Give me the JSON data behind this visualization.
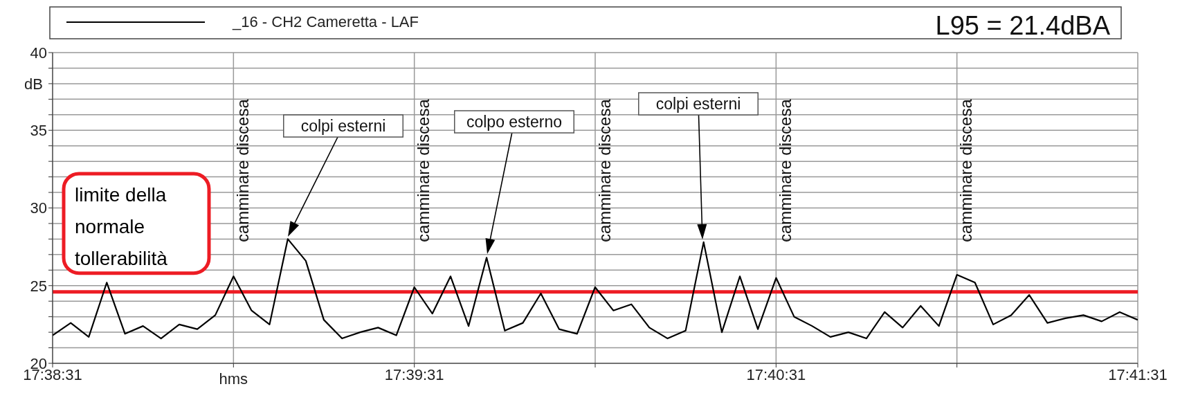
{
  "chart_data": {
    "type": "line",
    "xlabel": "hms",
    "ylabel": "dB",
    "legend": "top",
    "grid": true,
    "marker": "none",
    "line_style": "solid",
    "xlim": [
      17.641944,
      17.691944
    ],
    "xticks": [
      {
        "value": 17.641944,
        "label": "17:38:31"
      },
      {
        "value": 17.650278,
        "label": null
      },
      {
        "value": 17.658611,
        "label": "17:39:31"
      },
      {
        "value": 17.666944,
        "label": null
      },
      {
        "value": 17.675278,
        "label": "17:40:31"
      },
      {
        "value": 17.683611,
        "label": null
      },
      {
        "value": 17.691944,
        "label": "17:41:31"
      }
    ],
    "ylim": [
      20,
      40
    ],
    "yticks": [
      20,
      {
        "value": 21,
        "label": null
      },
      {
        "value": 22,
        "label": null
      },
      {
        "value": 23,
        "label": null
      },
      {
        "value": 24,
        "label": null
      },
      25,
      {
        "value": 26,
        "label": null
      },
      {
        "value": 27,
        "label": null
      },
      {
        "value": 28,
        "label": null
      },
      {
        "value": 29,
        "label": null
      },
      30,
      {
        "value": 31,
        "label": null
      },
      {
        "value": 32,
        "label": null
      },
      {
        "value": 33,
        "label": null
      },
      {
        "value": 34,
        "label": null
      },
      35,
      {
        "value": 36,
        "label": null
      },
      {
        "value": 37,
        "label": null
      },
      {
        "value": 38,
        "label": null
      },
      {
        "value": 39,
        "label": null
      },
      40
    ],
    "x": [
      17.641944,
      17.64278,
      17.64361,
      17.64444,
      17.64528,
      17.64611,
      17.64694,
      17.64778,
      17.64861,
      17.64944,
      17.65028,
      17.65111,
      17.65194,
      17.65278,
      17.65361,
      17.65444,
      17.65528,
      17.65611,
      17.65694,
      17.65778,
      17.65861,
      17.65944,
      17.66028,
      17.66111,
      17.66194,
      17.66278,
      17.66361,
      17.66444,
      17.66528,
      17.66611,
      17.66694,
      17.66778,
      17.66861,
      17.66944,
      17.67028,
      17.67111,
      17.67194,
      17.67278,
      17.67361,
      17.67444,
      17.67528,
      17.67611,
      17.67694,
      17.67778,
      17.67861,
      17.67944,
      17.68028,
      17.68111,
      17.68194,
      17.68278,
      17.68361,
      17.68444,
      17.68528,
      17.68611,
      17.68694,
      17.68778,
      17.68861,
      17.68944,
      17.69028,
      17.69111,
      17.69194
    ],
    "series": [
      {
        "name": "_16 - CH2 Cameretta - LAF",
        "color": "#000000",
        "values": [
          21.8,
          22.6,
          21.7,
          25.2,
          21.9,
          22.4,
          21.6,
          22.5,
          22.2,
          23.1,
          25.6,
          23.4,
          22.5,
          28.0,
          26.6,
          22.8,
          21.6,
          22.0,
          22.3,
          21.8,
          24.9,
          23.2,
          25.6,
          22.4,
          26.8,
          22.1,
          22.6,
          24.5,
          22.2,
          21.9,
          24.9,
          23.4,
          23.8,
          22.3,
          21.6,
          22.1,
          27.8,
          22.0,
          25.6,
          22.2,
          25.5,
          23.0,
          22.4,
          21.7,
          22.0,
          21.6,
          23.3,
          22.3,
          23.7,
          22.4,
          25.7,
          25.2,
          22.5,
          23.1,
          24.4,
          22.6,
          22.9,
          23.1,
          22.7,
          23.3,
          22.8
        ]
      }
    ],
    "ref_lines": [
      {
        "axis": "y",
        "value": 24.6,
        "label": "limite della normale tollerabilità",
        "color": "#ed1c24"
      }
    ],
    "annotations": [
      "camminare discesa",
      "camminare discesa",
      "camminare discesa",
      "camminare discesa",
      "camminare discesa",
      "colpi esterni",
      "colpo esterno",
      "colpi esterni",
      "L95 = 21.4dBA"
    ]
  }
}
